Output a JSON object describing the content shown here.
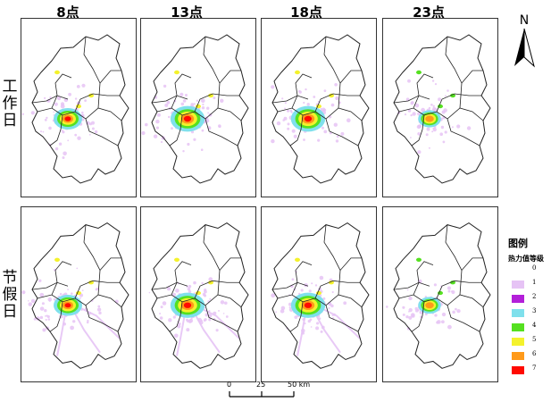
{
  "columns": [
    "8点",
    "13点",
    "18点",
    "23点"
  ],
  "rows": [
    {
      "label": "工作日",
      "chars": [
        "工",
        "作",
        "日"
      ]
    },
    {
      "label": "节假日",
      "chars": [
        "节",
        "假",
        "日"
      ]
    }
  ],
  "north_label": "N",
  "legend": {
    "title": "图例",
    "subtitle": "热力值等级",
    "levels": [
      {
        "value": "0",
        "color": "#ffffff"
      },
      {
        "value": "1",
        "color": "#e6c3f5"
      },
      {
        "value": "2",
        "color": "#b31fd9"
      },
      {
        "value": "3",
        "color": "#7fe0ec"
      },
      {
        "value": "4",
        "color": "#55e020"
      },
      {
        "value": "5",
        "color": "#f4f22c"
      },
      {
        "value": "6",
        "color": "#ff9a1a"
      },
      {
        "value": "7",
        "color": "#ff0a00"
      }
    ]
  },
  "scale_bar": {
    "labels": [
      "0",
      "25",
      "50 km"
    ]
  }
}
